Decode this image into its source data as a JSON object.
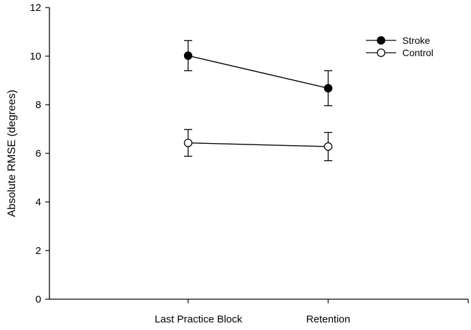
{
  "chart_data": {
    "type": "line",
    "categories": [
      "Last Practice Block",
      "Retention"
    ],
    "ylabel": "Absolute RMSE (degrees)",
    "xlabel": "",
    "ylim": [
      0,
      12
    ],
    "yticks": [
      0,
      2,
      4,
      6,
      8,
      10,
      12
    ],
    "grid": false,
    "legend_position": "top-right",
    "series": [
      {
        "name": "Stroke",
        "values": [
          10.02,
          8.68
        ],
        "errors": [
          0.62,
          0.72
        ],
        "marker": "filled-circle",
        "color": "#000000"
      },
      {
        "name": "Control",
        "values": [
          6.43,
          6.28
        ],
        "errors": [
          0.55,
          0.58
        ],
        "marker": "open-circle",
        "color": "#000000"
      }
    ]
  }
}
